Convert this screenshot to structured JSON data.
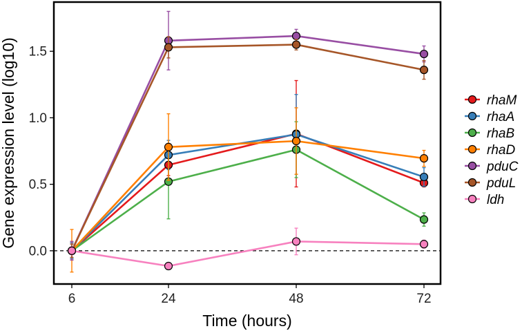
{
  "chart_data": {
    "type": "line",
    "title": "",
    "xlabel": "Time (hours)",
    "ylabel": "Gene expression level (log10)",
    "x": [
      6,
      24,
      48,
      72
    ],
    "x_tick_labels": [
      "6",
      "24",
      "48",
      "72"
    ],
    "y_ticks": [
      0.0,
      0.5,
      1.0,
      1.5
    ],
    "y_tick_labels": [
      "0.0",
      "0.5",
      "1.0",
      "1.5"
    ],
    "ylim": [
      -0.25,
      1.87
    ],
    "reference_line": 0,
    "legend_position": "right",
    "series": [
      {
        "name": "rhaM",
        "color": "#e41a1c",
        "values": [
          0.0,
          0.645,
          0.88,
          0.51
        ],
        "errors": [
          0.07,
          0.08,
          0.4,
          0.03
        ]
      },
      {
        "name": "rhaA",
        "color": "#377eb8",
        "values": [
          0.0,
          0.72,
          0.875,
          0.555
        ],
        "errors": [
          0.06,
          0.11,
          0.3,
          0.07
        ]
      },
      {
        "name": "rhaB",
        "color": "#4daf4a",
        "values": [
          0.0,
          0.52,
          0.76,
          0.235
        ],
        "errors": [
          0.05,
          0.28,
          0.21,
          0.05
        ]
      },
      {
        "name": "rhaD",
        "color": "#ff7f00",
        "values": [
          0.0,
          0.78,
          0.825,
          0.695
        ],
        "errors": [
          0.16,
          0.25,
          0.25,
          0.06
        ]
      },
      {
        "name": "pduC",
        "color": "#984ea3",
        "values": [
          0.0,
          1.58,
          1.615,
          1.48
        ],
        "errors": [
          0.07,
          0.22,
          0.05,
          0.06
        ]
      },
      {
        "name": "pduL",
        "color": "#a65628",
        "values": [
          0.0,
          1.53,
          1.55,
          1.36
        ],
        "errors": [
          0.05,
          0.08,
          0.04,
          0.07
        ]
      },
      {
        "name": "ldh",
        "color": "#f781bf",
        "values": [
          0.0,
          -0.115,
          0.07,
          0.05
        ],
        "errors": [
          0.03,
          0.01,
          0.1,
          0.03
        ]
      }
    ]
  }
}
